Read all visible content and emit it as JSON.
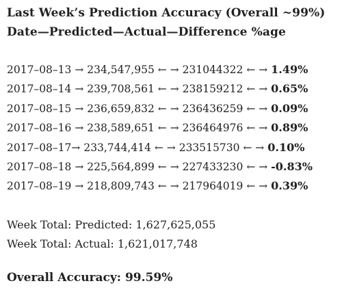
{
  "header": {
    "title": "Last Week’s Prediction Accuracy (Overall ~99%)",
    "columns": "Date—Predicted—Actual—Difference %age"
  },
  "rows": [
    {
      "date": "2017–08–13",
      "sep1": " → ",
      "predicted": "234,547,955",
      "sep2": " ← → ",
      "actual": "231044322",
      "sep3": " ← → ",
      "diff": "1.49%"
    },
    {
      "date": "2017–08–14",
      "sep1": " → ",
      "predicted": "239,708,561",
      "sep2": " ← → ",
      "actual": "238159212",
      "sep3": " ← → ",
      "diff": "0.65%"
    },
    {
      "date": "2017–08–15",
      "sep1": " → ",
      "predicted": "236,659,832",
      "sep2": " ← → ",
      "actual": "236436259",
      "sep3": " ← → ",
      "diff": "0.09%"
    },
    {
      "date": "2017–08–16",
      "sep1": " → ",
      "predicted": "238,589,651",
      "sep2": " ← → ",
      "actual": "236464976",
      "sep3": " ← → ",
      "diff": "0.89%"
    },
    {
      "date": "2017–08–17",
      "sep1": "→ ",
      "predicted": "233,744,414",
      "sep2": " ← → ",
      "actual": "233515730",
      "sep3": " ← → ",
      "diff": "0.10%"
    },
    {
      "date": "2017–08–18",
      "sep1": " → ",
      "predicted": "225,564,899",
      "sep2": " ← → ",
      "actual": "227433230",
      "sep3": " ← → ",
      "diff": "-0.83%"
    },
    {
      "date": "2017–08–19",
      "sep1": " → ",
      "predicted": "218,809,743",
      "sep2": " ← → ",
      "actual": "217964019",
      "sep3": " ← → ",
      "diff": "0.39%"
    }
  ],
  "totals": {
    "predicted_label": "Week Total: Predicted: ",
    "predicted_value": "1,627,625,055",
    "actual_label": "Week Total: Actual: ",
    "actual_value": "1,621,017,748"
  },
  "overall": {
    "label": "Overall Accuracy: ",
    "value": "99.59%"
  }
}
